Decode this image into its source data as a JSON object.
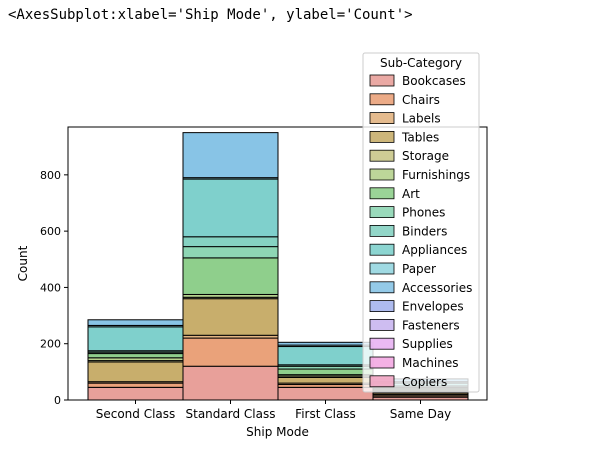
{
  "output_repr": "<AxesSubplot:xlabel='Ship Mode', ylabel='Count'>",
  "chart_data": {
    "type": "bar",
    "stacked": true,
    "xlabel": "Ship Mode",
    "ylabel": "Count",
    "ylim": [
      0,
      970
    ],
    "yticks": [
      0,
      200,
      400,
      600,
      800
    ],
    "categories": [
      "Second Class",
      "Standard Class",
      "First Class",
      "Same Day"
    ],
    "legend": {
      "title": "Sub-Category",
      "placement": "top-right"
    },
    "series": [
      {
        "name": "Bookcases",
        "color": "#e8a09a",
        "values": [
          45,
          120,
          45,
          10
        ]
      },
      {
        "name": "Chairs",
        "color": "#eaa27a",
        "values": [
          15,
          100,
          10,
          5
        ]
      },
      {
        "name": "Labels",
        "color": "#e2b482",
        "values": [
          5,
          10,
          5,
          5
        ]
      },
      {
        "name": "Tables",
        "color": "#c8ae6c",
        "values": [
          70,
          130,
          20,
          5
        ]
      },
      {
        "name": "Storage",
        "color": "#c9c68a",
        "values": [
          5,
          5,
          5,
          5
        ]
      },
      {
        "name": "Furnishings",
        "color": "#b6d28e",
        "values": [
          10,
          10,
          5,
          5
        ]
      },
      {
        "name": "Art",
        "color": "#8fcf8c",
        "values": [
          15,
          130,
          20,
          5
        ]
      },
      {
        "name": "Phones",
        "color": "#8ed6b4",
        "values": [
          5,
          40,
          10,
          5
        ]
      },
      {
        "name": "Binders",
        "color": "#86d2c2",
        "values": [
          5,
          35,
          5,
          5
        ]
      },
      {
        "name": "Appliances",
        "color": "#7fd0cc",
        "values": [
          85,
          205,
          65,
          10
        ]
      },
      {
        "name": "Paper",
        "color": "#96d6e0",
        "values": [
          5,
          5,
          5,
          5
        ]
      },
      {
        "name": "Accessories",
        "color": "#88c4e6",
        "values": [
          20,
          160,
          10,
          10
        ]
      },
      {
        "name": "Envelopes",
        "color": "#a5b4ec",
        "values": [
          0,
          0,
          0,
          0
        ]
      },
      {
        "name": "Fasteners",
        "color": "#c9b6f0",
        "values": [
          0,
          0,
          0,
          0
        ]
      },
      {
        "name": "Supplies",
        "color": "#e8b2f2",
        "values": [
          0,
          0,
          0,
          0
        ]
      },
      {
        "name": "Machines",
        "color": "#f3a8e2",
        "values": [
          0,
          0,
          0,
          0
        ]
      },
      {
        "name": "Copiers",
        "color": "#f2a6c4",
        "values": [
          0,
          0,
          0,
          0
        ]
      }
    ],
    "grid": false
  }
}
